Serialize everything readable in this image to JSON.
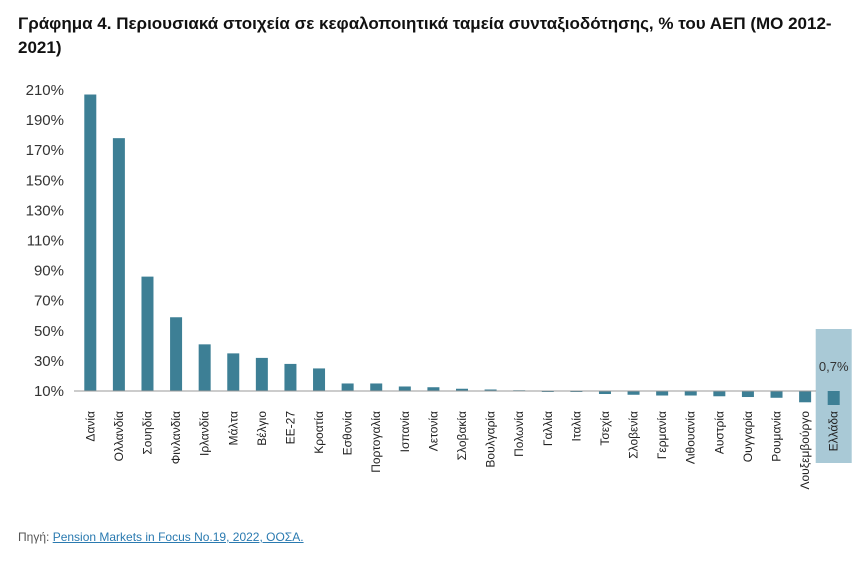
{
  "chart_data": {
    "type": "bar",
    "title": "Γράφημα 4. Περιουσιακά στοιχεία σε κεφαλοποιητικά ταμεία συνταξιοδότησης, % του ΑΕΠ (ΜΟ 2012-2021)",
    "categories": [
      "Δανία",
      "Ολλανδία",
      "Σουηδία",
      "Φινλανδία",
      "Ιρλανδία",
      "Μάλτα",
      "Βέλγιο",
      "ΕΕ-27",
      "Κροατία",
      "Εσθονία",
      "Πορτογαλία",
      "Ισπανία",
      "Λετονία",
      "Σλοβακία",
      "Βουλγαρία",
      "Πολωνία",
      "Γαλλία",
      "Ιταλία",
      "Τσεχία",
      "Σλοβενία",
      "Γερμανία",
      "Λιθουανία",
      "Αυστρία",
      "Ουγγαρία",
      "Ρουμανία",
      "Λουξεμβούργο",
      "Ελλάδα"
    ],
    "values": [
      207,
      178,
      86,
      59,
      41,
      35,
      32,
      28,
      25,
      15,
      15,
      13,
      12.5,
      11.5,
      11,
      10.5,
      10,
      9.5,
      8,
      7.5,
      7,
      7,
      6.5,
      6,
      5.5,
      2.5,
      0.7
    ],
    "yticks": [
      "210%",
      "190%",
      "170%",
      "150%",
      "130%",
      "110%",
      "90%",
      "70%",
      "50%",
      "30%",
      "10%"
    ],
    "ylim": [
      10,
      210
    ],
    "highlight": {
      "category": "Ελλάδα",
      "label": "0,7%"
    },
    "colors": {
      "bar": "#3d7f95",
      "highlight_bg": "#a9c9d6",
      "baseline": "#999999"
    }
  },
  "source": {
    "prefix": "Πηγή: ",
    "link_text": "Pension Markets in Focus No.19, 2022, ΟΟΣΑ."
  }
}
